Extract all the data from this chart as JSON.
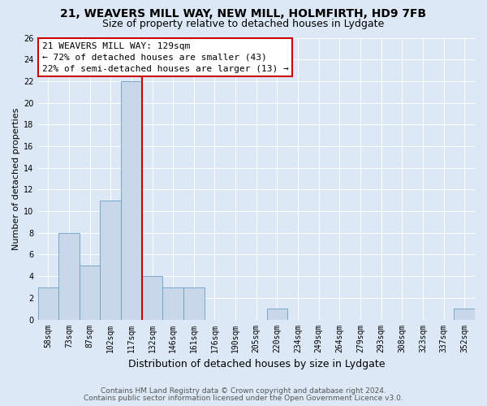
{
  "title": "21, WEAVERS MILL WAY, NEW MILL, HOLMFIRTH, HD9 7FB",
  "subtitle": "Size of property relative to detached houses in Lydgate",
  "xlabel": "Distribution of detached houses by size in Lydgate",
  "ylabel": "Number of detached properties",
  "annotation_line1": "21 WEAVERS MILL WAY: 129sqm",
  "annotation_line2": "← 72% of detached houses are smaller (43)",
  "annotation_line3": "22% of semi-detached houses are larger (13) →",
  "categories": [
    "58sqm",
    "73sqm",
    "87sqm",
    "102sqm",
    "117sqm",
    "132sqm",
    "146sqm",
    "161sqm",
    "176sqm",
    "190sqm",
    "205sqm",
    "220sqm",
    "234sqm",
    "249sqm",
    "264sqm",
    "279sqm",
    "293sqm",
    "308sqm",
    "323sqm",
    "337sqm",
    "352sqm"
  ],
  "values": [
    3,
    8,
    5,
    11,
    22,
    4,
    3,
    3,
    0,
    0,
    0,
    1,
    0,
    0,
    0,
    0,
    0,
    0,
    0,
    0,
    1
  ],
  "bar_color": "#c8d8ea",
  "bar_edge_color": "#6a9fc0",
  "red_line_color": "#cc0000",
  "red_line_x": 4.5,
  "ylim": [
    0,
    26
  ],
  "yticks": [
    0,
    2,
    4,
    6,
    8,
    10,
    12,
    14,
    16,
    18,
    20,
    22,
    24,
    26
  ],
  "footnote1": "Contains HM Land Registry data © Crown copyright and database right 2024.",
  "footnote2": "Contains public sector information licensed under the Open Government Licence v3.0.",
  "background_color": "#dce8f5",
  "plot_background": "#dce8f5",
  "grid_color": "#ffffff",
  "title_fontsize": 10,
  "subtitle_fontsize": 9,
  "xlabel_fontsize": 9,
  "ylabel_fontsize": 8,
  "tick_fontsize": 7,
  "annotation_fontsize": 8,
  "footnote_fontsize": 6.5
}
